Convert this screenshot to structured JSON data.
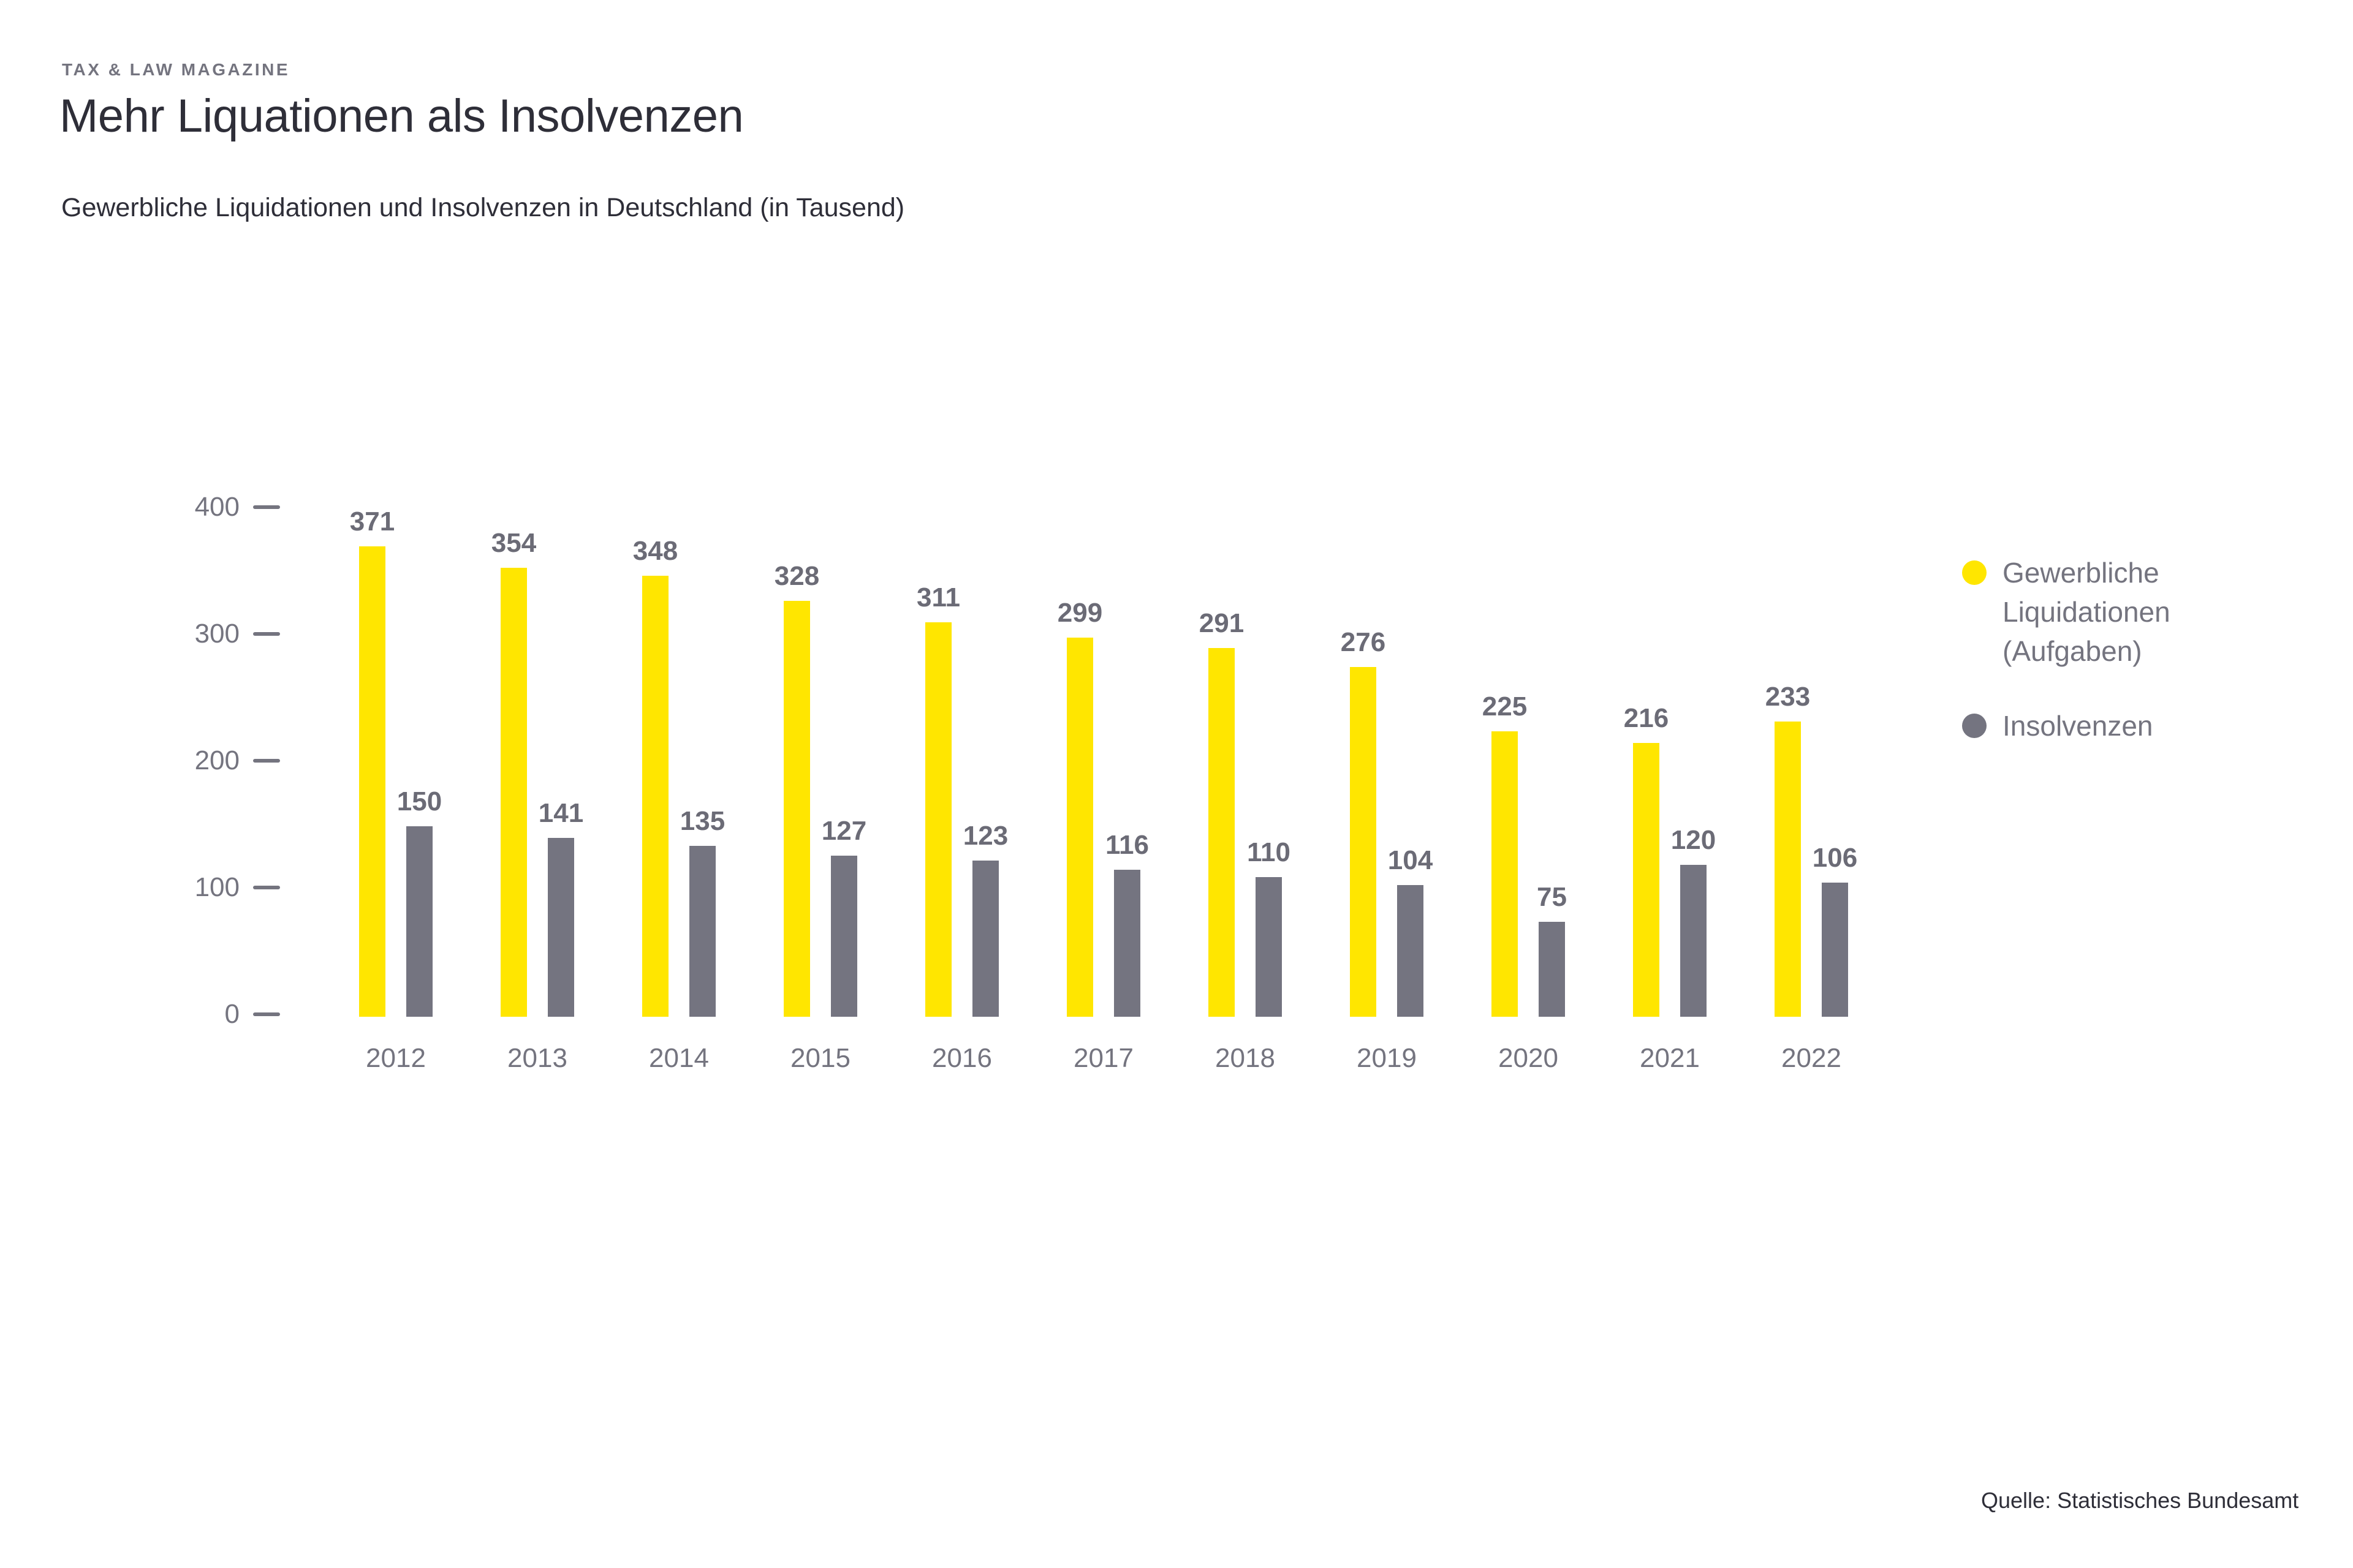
{
  "header": {
    "eyebrow": "TAX & LAW MAGAZINE",
    "title": "Mehr Liquationen als Insolvenzen",
    "subtitle": "Gewerbliche Liquidationen und Insolvenzen in Deutschland (in Tausend)"
  },
  "legend": {
    "items": [
      {
        "label": "Gewerbliche Liquidationen (Aufgaben)",
        "color": "#FFE600"
      },
      {
        "label": "Insolvenzen",
        "color": "#747480"
      }
    ]
  },
  "footer": {
    "source": "Quelle: Statistisches Bundesamt"
  },
  "colors": {
    "accent_yellow": "#FFE600",
    "bar_gray": "#747480",
    "dark_text": "#2E2E38",
    "muted_text": "#74747F",
    "value_label_text": "#6B6B76",
    "background": "#FFFFFF"
  },
  "chart_data": {
    "type": "bar",
    "title": "Mehr Liquationen als Insolvenzen",
    "subtitle": "Gewerbliche Liquidationen und Insolvenzen in Deutschland (in Tausend)",
    "unit": "Tausend",
    "categories": [
      "2012",
      "2013",
      "2014",
      "2015",
      "2016",
      "2017",
      "2018",
      "2019",
      "2020",
      "2021",
      "2022"
    ],
    "series": [
      {
        "name": "Gewerbliche Liquidationen (Aufgaben)",
        "color": "#FFE600",
        "values": [
          371,
          354,
          348,
          328,
          311,
          299,
          291,
          276,
          225,
          216,
          233
        ]
      },
      {
        "name": "Insolvenzen",
        "color": "#747480",
        "values": [
          150,
          141,
          135,
          127,
          123,
          116,
          110,
          104,
          75,
          120,
          106
        ]
      }
    ],
    "ylim": [
      0,
      400
    ],
    "yticks": [
      400,
      300,
      200,
      100,
      0
    ],
    "grid": false,
    "value_labels": true,
    "legend_position": "right",
    "source": "Quelle: Statistisches Bundesamt"
  }
}
